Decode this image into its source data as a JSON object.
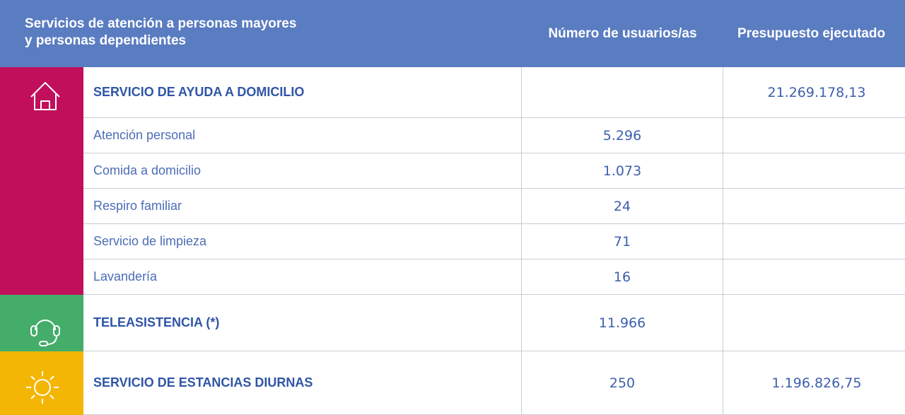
{
  "header": {
    "title_lines": [
      "Servicios de atención a personas mayores",
      "y personas dependientes"
    ],
    "users": "Número de usuarios/as",
    "budget": "Presupuesto ejecutado"
  },
  "rows": [
    {
      "name": "SERVICIO DE AYUDA A DOMICILIO",
      "budget": "21.269.178,13"
    },
    {
      "name": "Atención personal",
      "users": "5.296"
    },
    {
      "name": "Comida a domicilio",
      "users": "1.073"
    },
    {
      "name": "Respiro familiar",
      "users": "24"
    },
    {
      "name": "Servicio de limpieza",
      "users": "71"
    },
    {
      "name": "Lavandería",
      "users": "16"
    },
    {
      "name": "TELEASISTENCIA (*)",
      "users": "11.966"
    },
    {
      "name": "SERVICIO DE ESTANCIAS DIURNAS",
      "users": "250",
      "budget": "1.196.826,75"
    }
  ]
}
